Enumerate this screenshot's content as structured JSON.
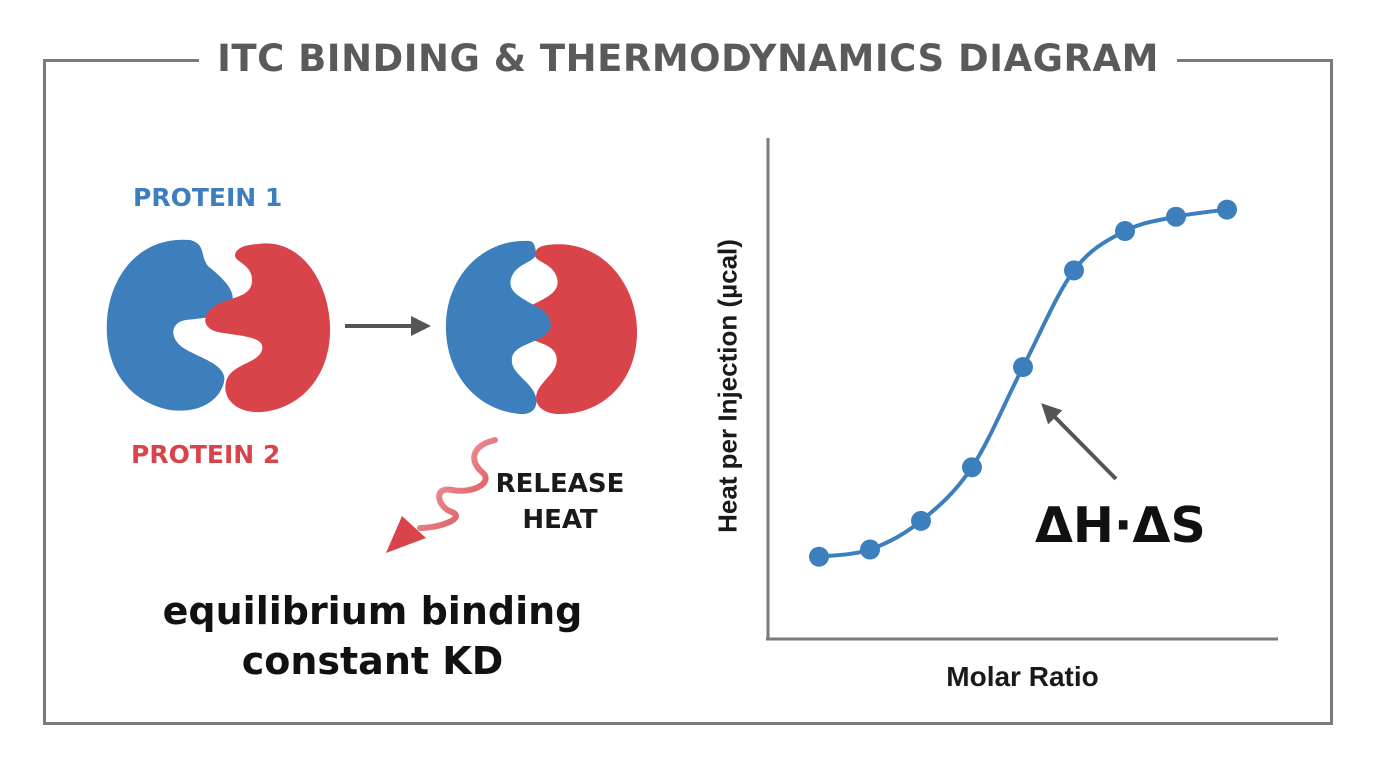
{
  "title": "ITC BINDING & THERMODYNAMICS DIAGRAM",
  "proteins": {
    "protein1_label": "PROTEIN 1",
    "protein2_label": "PROTEIN 2"
  },
  "heat": {
    "line1": "RELEASE",
    "line2": "HEAT"
  },
  "kd_text": "equilibrium binding constant KD",
  "thermo_label": "ΔH·ΔS",
  "colors": {
    "protein1": "#3d7fbc",
    "protein2": "#d9444b",
    "frame": "#7a7a7a",
    "arrow": "#555555",
    "curve": "#3d7fbc"
  },
  "chart_data": {
    "type": "line",
    "xlabel": "Molar Ratio",
    "ylabel": "Heat per Injection (µcal)",
    "x": [
      1,
      2,
      3,
      4,
      5,
      6,
      7,
      8,
      9
    ],
    "y": [
      0.03,
      0.05,
      0.13,
      0.28,
      0.56,
      0.83,
      0.94,
      0.98,
      1.0
    ],
    "xlim": [
      0,
      10
    ],
    "ylim": [
      -0.2,
      1.2
    ],
    "grid": false,
    "annotation": {
      "text": "ΔH·ΔS",
      "points_to_index": 4
    }
  }
}
